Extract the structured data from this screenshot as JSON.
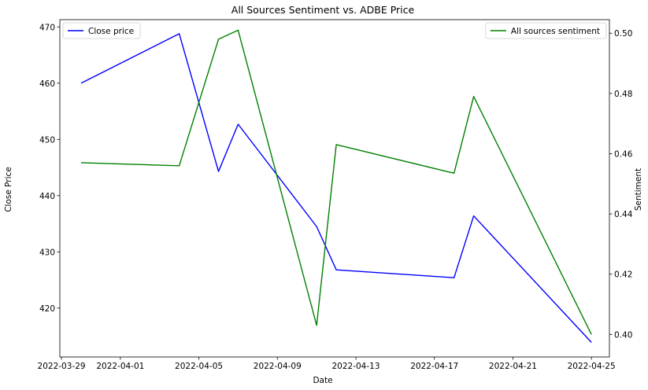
{
  "chart_data": {
    "type": "line",
    "title": "All Sources Sentiment vs. ADBE Price",
    "xlabel": "Date",
    "ylabel_left": "Close Price",
    "ylabel_right": "Sentiment",
    "ylabel_left_color": "#0000ff",
    "ylabel_right_color": "#008000",
    "xlim": [
      "2022-03-28T22:00",
      "2022-04-25T22:00"
    ],
    "ylim_left": [
      411.3,
      471.3
    ],
    "ylim_right": [
      0.3925,
      0.5045
    ],
    "x_ticks": [
      {
        "value": "2022-03-29",
        "label": "2022-03-29"
      },
      {
        "value": "2022-04-01",
        "label": "2022-04-01"
      },
      {
        "value": "2022-04-05",
        "label": "2022-04-05"
      },
      {
        "value": "2022-04-09",
        "label": "2022-04-09"
      },
      {
        "value": "2022-04-13",
        "label": "2022-04-13"
      },
      {
        "value": "2022-04-17",
        "label": "2022-04-17"
      },
      {
        "value": "2022-04-21",
        "label": "2022-04-21"
      },
      {
        "value": "2022-04-25",
        "label": "2022-04-25"
      }
    ],
    "y_ticks_left": [
      {
        "value": 420,
        "label": "420"
      },
      {
        "value": 430,
        "label": "430"
      },
      {
        "value": 440,
        "label": "440"
      },
      {
        "value": 450,
        "label": "450"
      },
      {
        "value": 460,
        "label": "460"
      },
      {
        "value": 470,
        "label": "470"
      }
    ],
    "y_ticks_right": [
      {
        "value": 0.4,
        "label": "0.40"
      },
      {
        "value": 0.42,
        "label": "0.42"
      },
      {
        "value": 0.44,
        "label": "0.44"
      },
      {
        "value": 0.46,
        "label": "0.46"
      },
      {
        "value": 0.48,
        "label": "0.48"
      },
      {
        "value": 0.5,
        "label": "0.50"
      }
    ],
    "series": [
      {
        "name": "Close price",
        "axis": "left",
        "color": "#0000ff",
        "legend_position": "upper-left",
        "points": [
          {
            "x": "2022-03-30",
            "y": 460.0
          },
          {
            "x": "2022-04-04",
            "y": 468.8
          },
          {
            "x": "2022-04-06",
            "y": 444.3
          },
          {
            "x": "2022-04-07",
            "y": 452.7
          },
          {
            "x": "2022-04-11",
            "y": 434.5
          },
          {
            "x": "2022-04-12",
            "y": 426.8
          },
          {
            "x": "2022-04-18",
            "y": 425.4
          },
          {
            "x": "2022-04-19",
            "y": 436.4
          },
          {
            "x": "2022-04-25",
            "y": 413.9
          }
        ]
      },
      {
        "name": "All sources sentiment",
        "axis": "right",
        "color": "#008000",
        "legend_position": "upper-right",
        "points": [
          {
            "x": "2022-03-30",
            "y": 0.457
          },
          {
            "x": "2022-04-04",
            "y": 0.456
          },
          {
            "x": "2022-04-06",
            "y": 0.498
          },
          {
            "x": "2022-04-07",
            "y": 0.501
          },
          {
            "x": "2022-04-11",
            "y": 0.403
          },
          {
            "x": "2022-04-12",
            "y": 0.463
          },
          {
            "x": "2022-04-18",
            "y": 0.4535
          },
          {
            "x": "2022-04-19",
            "y": 0.479
          },
          {
            "x": "2022-04-25",
            "y": 0.4
          }
        ]
      }
    ]
  }
}
